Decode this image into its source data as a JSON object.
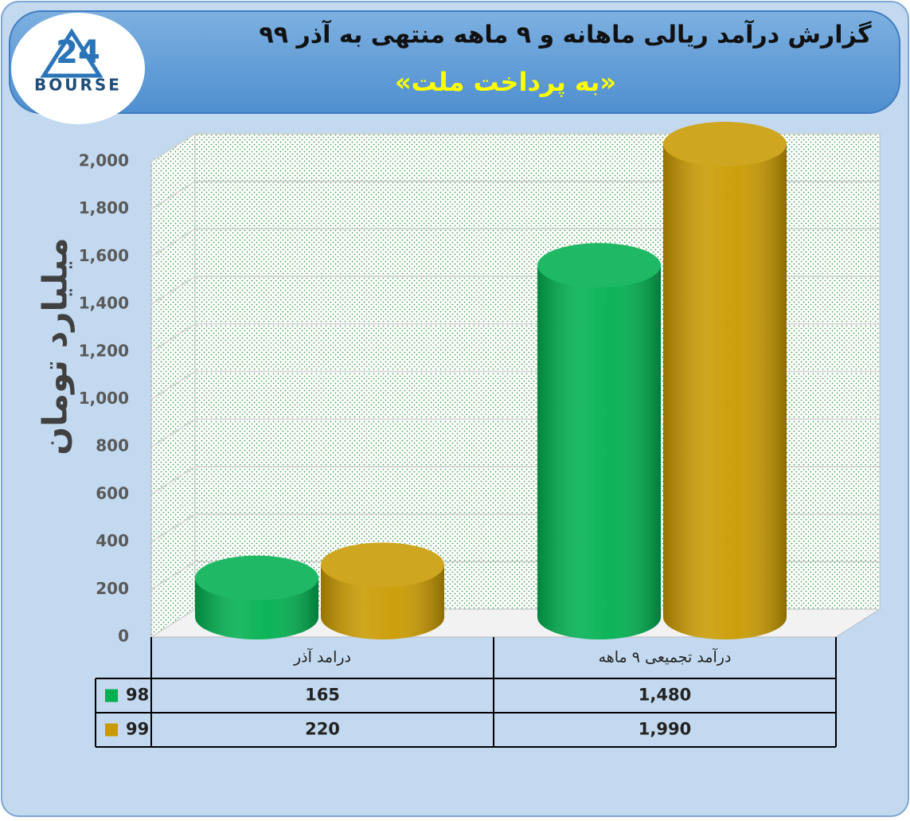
{
  "logo": {
    "mark": "24",
    "name": "BOURSE"
  },
  "chart_data": {
    "type": "bar3d",
    "title": "گزارش درآمد ریالی ماهانه و ۹ ماهه منتهی به آذر ۹۹",
    "subtitle": "«به پرداخت ملت»",
    "y_label": "میلیارد تومان",
    "categories": [
      "درامد آذر",
      "درآمد تجمیعی ۹ ماهه"
    ],
    "series": [
      {
        "name": "98",
        "color": "#00b050",
        "values": [
          165,
          1480
        ],
        "value_labels": [
          "165",
          "1,480"
        ]
      },
      {
        "name": "99",
        "color": "#c99a00",
        "values": [
          220,
          1990
        ],
        "value_labels": [
          "220",
          "1,990"
        ]
      }
    ],
    "ylim": [
      0,
      2000
    ],
    "yticks": [
      0,
      200,
      400,
      600,
      800,
      {
        "value": 1000,
        "label": "1,000"
      },
      {
        "value": 1200,
        "label": "1,200"
      },
      {
        "value": 1400,
        "label": "1,400"
      },
      {
        "value": 1600,
        "label": "1,600"
      },
      {
        "value": 1800,
        "label": "1,800"
      },
      {
        "value": 2000,
        "label": "2,000"
      }
    ],
    "grid": true,
    "data_table": true
  }
}
